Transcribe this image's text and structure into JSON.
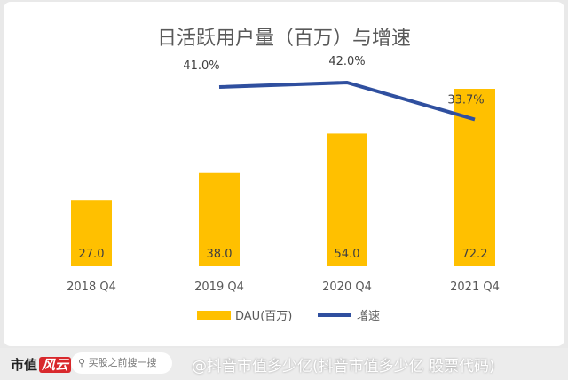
{
  "chart_data": {
    "type": "bar",
    "title": "日活跃用户量（百万）与增速",
    "categories": [
      "2018 Q4",
      "2019 Q4",
      "2020 Q4",
      "2021 Q4"
    ],
    "series": [
      {
        "name": "DAU(百万)",
        "type": "bar",
        "values": [
          27.0,
          38.0,
          54.0,
          72.2
        ],
        "labels": [
          "27.0",
          "38.0",
          "54.0",
          "72.2"
        ],
        "color": "#FFC000"
      },
      {
        "name": "增速",
        "type": "line",
        "values": [
          null,
          41.0,
          42.0,
          33.7
        ],
        "labels": [
          "",
          "41.0%",
          "42.0%",
          "33.7%"
        ],
        "color": "#2F4F9F"
      }
    ],
    "legend": "bottom",
    "grid": false
  },
  "footer": {
    "logo": "市值风云",
    "logo_a": "市值",
    "logo_b": "风云",
    "search_placeholder": "买股之前搜一搜",
    "search_icon": "search-icon",
    "watermark": "@抖音市值多少亿(抖音市值多少亿 股票代码)"
  }
}
